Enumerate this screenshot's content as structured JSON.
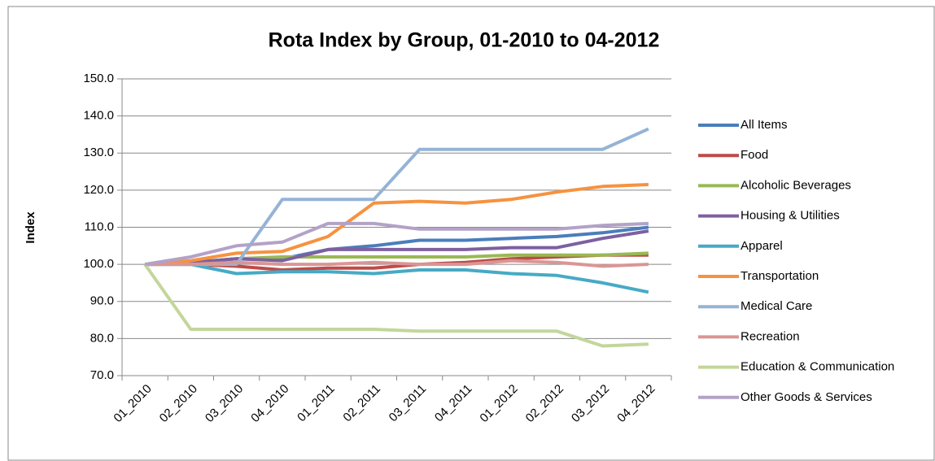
{
  "chart_data": {
    "type": "line",
    "title": "Rota Index by Group, 01-2010 to 04-2012",
    "y_label": "Index",
    "categories": [
      "01_2010",
      "02_2010",
      "03_2010",
      "04_2010",
      "01_2011",
      "02_2011",
      "03_2011",
      "04_2011",
      "01_2012",
      "02_2012",
      "03_2012",
      "04_2012"
    ],
    "ylim": [
      70,
      150
    ],
    "yticks": [
      {
        "value": 70,
        "label": "70.0"
      },
      {
        "value": 80,
        "label": "80.0"
      },
      {
        "value": 90,
        "label": "90.0"
      },
      {
        "value": 100,
        "label": "100.0"
      },
      {
        "value": 110,
        "label": "110.0"
      },
      {
        "value": 120,
        "label": "120.0"
      },
      {
        "value": 130,
        "label": "130.0"
      },
      {
        "value": 140,
        "label": "140.0"
      },
      {
        "value": 150,
        "label": "150.0"
      }
    ],
    "grid": true,
    "legend": "right",
    "series": [
      {
        "name": "All Items",
        "color": "#4A7EBB",
        "values": [
          100,
          100.5,
          101.5,
          101.5,
          104,
          105,
          106.5,
          106.5,
          107,
          107.5,
          108.5,
          110
        ]
      },
      {
        "name": "Food",
        "color": "#BE4B48",
        "values": [
          100,
          100,
          99.5,
          98.5,
          99,
          99,
          100,
          100.5,
          101.5,
          102,
          102.5,
          102.5
        ]
      },
      {
        "name": "Alcoholic Beverages",
        "color": "#98B954",
        "values": [
          100,
          100.5,
          101.5,
          102,
          102,
          102,
          102,
          102,
          102.5,
          102.5,
          102.5,
          103
        ]
      },
      {
        "name": "Housing & Utilities",
        "color": "#7D60A0",
        "values": [
          100,
          100.5,
          101.5,
          101,
          104,
          104,
          104,
          104,
          104.5,
          104.5,
          107,
          109
        ]
      },
      {
        "name": "Apparel",
        "color": "#46AAC5",
        "values": [
          100,
          100,
          97.5,
          98,
          98,
          97.5,
          98.5,
          98.5,
          97.5,
          97,
          95,
          92.5
        ]
      },
      {
        "name": "Transportation",
        "color": "#F69240",
        "values": [
          100,
          101,
          103,
          103.5,
          107.5,
          116.5,
          117,
          116.5,
          117.5,
          119.5,
          121,
          121.5
        ]
      },
      {
        "name": "Medical Care",
        "color": "#95B3D7",
        "values": [
          100,
          100,
          100,
          117.5,
          117.5,
          117.5,
          131,
          131,
          131,
          131,
          131,
          136.5
        ]
      },
      {
        "name": "Recreation",
        "color": "#D99694",
        "values": [
          100,
          100,
          100.5,
          100,
          100,
          100.5,
          100,
          100,
          101,
          100.5,
          99.5,
          100
        ]
      },
      {
        "name": "Education & Communication",
        "color": "#C3D69B",
        "values": [
          100,
          82.5,
          82.5,
          82.5,
          82.5,
          82.5,
          82,
          82,
          82,
          82,
          78,
          78.5
        ]
      },
      {
        "name": "Other Goods & Services",
        "color": "#B3A2C7",
        "values": [
          100,
          102,
          105,
          106,
          111,
          111,
          109.5,
          109.5,
          109.5,
          109.5,
          110.5,
          111
        ]
      }
    ]
  }
}
